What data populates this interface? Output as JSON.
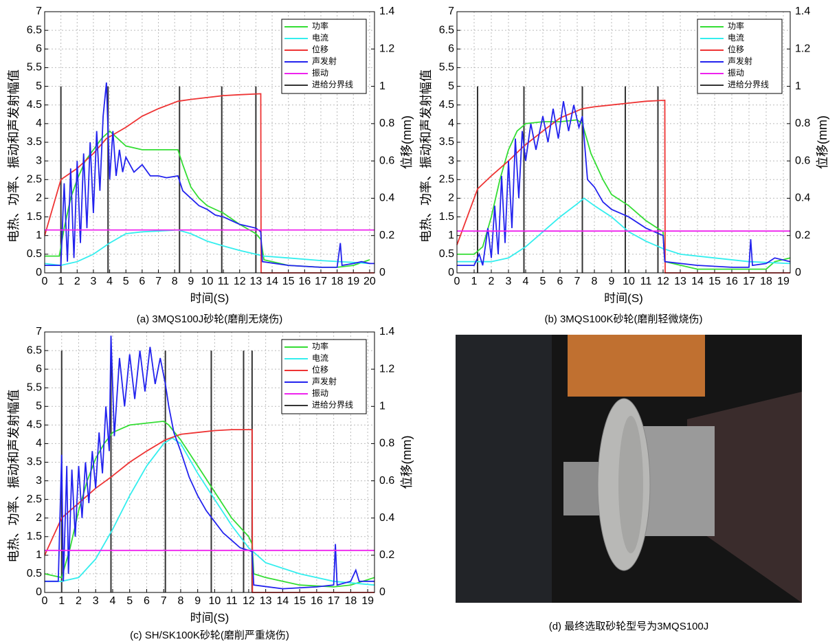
{
  "chart_data": [
    {
      "type": "line",
      "caption": "(a) 3MQS100J砂轮(磨削无烧伤)",
      "xlabel": "时间(S)",
      "ylabel": "电热、功率、振动和声发射幅值",
      "y2label": "位移(mm)",
      "xlim": [
        0,
        20.3
      ],
      "xticks": [
        0,
        1,
        2,
        3,
        4,
        5,
        6,
        7,
        8,
        9,
        10,
        11,
        12,
        13,
        14,
        15,
        16,
        17,
        18,
        19,
        20
      ],
      "ylim": [
        0,
        7
      ],
      "yticks": [
        0,
        0.5,
        1,
        1.5,
        2,
        2.5,
        3,
        3.5,
        4,
        4.5,
        5,
        5.5,
        6,
        6.5,
        7
      ],
      "y2lim": [
        0,
        1.4
      ],
      "y2ticks": [
        0,
        0.2,
        0.4,
        0.6,
        0.8,
        1,
        1.2,
        1.4
      ],
      "grid": true,
      "legend": "upper right",
      "series": [
        {
          "name": "功率",
          "color": "#33dd33",
          "x": [
            0,
            0.9,
            1.2,
            1.6,
            2,
            2.5,
            3,
            3.5,
            4,
            4.5,
            5,
            6,
            7,
            8.2,
            8.5,
            9,
            9.5,
            10,
            11,
            12,
            13,
            13.3,
            13.5,
            15,
            17,
            18,
            19,
            20
          ],
          "values": [
            0.45,
            0.45,
            1.2,
            2,
            2.5,
            3,
            3.3,
            3.6,
            3.8,
            3.6,
            3.4,
            3.3,
            3.3,
            3.3,
            2.9,
            2.3,
            2,
            1.8,
            1.6,
            1.3,
            1.05,
            0.9,
            0.35,
            0.2,
            0.15,
            0.15,
            0.2,
            0.35
          ]
        },
        {
          "name": "电流",
          "color": "#33eeee",
          "x": [
            0,
            1,
            2,
            3,
            4,
            5,
            6,
            7,
            8.2,
            9,
            10,
            11,
            12,
            13,
            13.5,
            15,
            17,
            19,
            20
          ],
          "values": [
            0.25,
            0.2,
            0.3,
            0.5,
            0.8,
            1.05,
            1.1,
            1.12,
            1.15,
            1.05,
            0.85,
            0.72,
            0.6,
            0.5,
            0.45,
            0.4,
            0.33,
            0.28,
            0.25
          ]
        },
        {
          "name": "位移",
          "color": "#ee3333",
          "axis": "y2",
          "x": [
            0,
            1,
            2,
            3,
            3.8,
            5,
            6,
            7,
            8.2,
            9,
            10,
            11,
            12,
            13.3,
            13.32,
            20.3
          ],
          "values": [
            0.2,
            0.5,
            0.56,
            0.64,
            0.72,
            0.78,
            0.84,
            0.88,
            0.92,
            0.93,
            0.94,
            0.95,
            0.955,
            0.96,
            0,
            0
          ]
        },
        {
          "name": "声发射",
          "color": "#2222ee",
          "x": [
            0,
            1,
            1.2,
            1.4,
            1.6,
            1.8,
            2,
            2.2,
            2.4,
            2.6,
            2.8,
            3,
            3.2,
            3.4,
            3.6,
            3.8,
            4,
            4.2,
            4.4,
            4.6,
            4.8,
            5,
            5.5,
            6,
            6.5,
            7,
            7.5,
            8.2,
            8.5,
            9,
            9.5,
            10,
            10.5,
            11,
            11.5,
            12,
            13,
            13.3,
            13.4,
            15,
            17,
            18,
            18.2,
            18.3,
            19,
            19.5,
            20,
            20.3
          ],
          "values": [
            0.2,
            0.2,
            2.4,
            0.3,
            2.8,
            0.4,
            3,
            0.8,
            3.2,
            1.2,
            3.5,
            1.6,
            3.8,
            2.2,
            4.2,
            5.1,
            2.5,
            3.8,
            2.6,
            3.3,
            2.7,
            3.1,
            2.7,
            2.9,
            2.6,
            2.6,
            2.55,
            2.6,
            2.2,
            2,
            1.8,
            1.7,
            1.55,
            1.5,
            1.4,
            1.3,
            1.2,
            1.1,
            0.3,
            0.2,
            0.15,
            0.15,
            0.8,
            0.2,
            0.25,
            0.3,
            0.25,
            0.25
          ]
        },
        {
          "name": "振动",
          "color": "#ee22ee",
          "x": [
            0,
            20.3
          ],
          "values": [
            1.15,
            1.15
          ]
        }
      ],
      "vlines": {
        "name": "进给分界线",
        "color": "#333333",
        "x": [
          1,
          3.9,
          8.3,
          10.9,
          13
        ],
        "top": 5
      }
    },
    {
      "type": "line",
      "caption": "(b) 3MQS100K砂轮(磨削轻微烧伤)",
      "xlabel": "时间(S)",
      "ylabel": "电热、功率、振动和声发射幅值",
      "y2label": "位移(mm)",
      "xlim": [
        0,
        19.4
      ],
      "xticks": [
        0,
        1,
        2,
        3,
        4,
        5,
        6,
        7,
        8,
        9,
        10,
        11,
        12,
        13,
        14,
        15,
        16,
        17,
        18,
        19
      ],
      "ylim": [
        0,
        7
      ],
      "yticks": [
        0,
        0.5,
        1,
        1.5,
        2,
        2.5,
        3,
        3.5,
        4,
        4.5,
        5,
        5.5,
        6,
        6.5,
        7
      ],
      "y2lim": [
        0,
        1.4
      ],
      "y2ticks": [
        0,
        0.2,
        0.4,
        0.6,
        0.8,
        1,
        1.2,
        1.4
      ],
      "grid": true,
      "legend": "upper right",
      "series": [
        {
          "name": "功率",
          "color": "#33dd33",
          "x": [
            0,
            1,
            1.5,
            2,
            2.5,
            3,
            3.5,
            4,
            5,
            6,
            7,
            7.3,
            7.8,
            8.5,
            9,
            10,
            11,
            12,
            12.1,
            14,
            16,
            18,
            18.5,
            19.4
          ],
          "values": [
            0.5,
            0.5,
            0.7,
            1.5,
            2.5,
            3.3,
            3.8,
            4,
            4.05,
            4.05,
            4.1,
            4,
            3.2,
            2.5,
            2.1,
            1.8,
            1.4,
            1.1,
            0.3,
            0.1,
            0.1,
            0.1,
            0.3,
            0.4
          ]
        },
        {
          "name": "电流",
          "color": "#33eeee",
          "x": [
            0,
            2,
            3,
            4,
            5,
            6,
            7,
            7.4,
            8,
            9,
            10,
            11,
            12,
            13,
            15,
            17,
            19.4
          ],
          "values": [
            0.3,
            0.3,
            0.4,
            0.7,
            1.1,
            1.5,
            1.85,
            2,
            1.8,
            1.5,
            1.1,
            0.85,
            0.65,
            0.5,
            0.4,
            0.3,
            0.25
          ]
        },
        {
          "name": "位移",
          "color": "#ee3333",
          "axis": "y2",
          "x": [
            0,
            1.2,
            2,
            3,
            3.9,
            5,
            6,
            7.3,
            8,
            9,
            10,
            11,
            12.1,
            12.12,
            19.4
          ],
          "values": [
            0.15,
            0.45,
            0.52,
            0.6,
            0.68,
            0.76,
            0.83,
            0.88,
            0.89,
            0.9,
            0.91,
            0.92,
            0.925,
            0,
            0
          ]
        },
        {
          "name": "声发射",
          "color": "#2222ee",
          "x": [
            0,
            1,
            1.3,
            1.5,
            1.8,
            2,
            2.2,
            2.4,
            2.6,
            2.8,
            3,
            3.2,
            3.4,
            3.6,
            3.8,
            4,
            4.3,
            4.6,
            5,
            5.3,
            5.6,
            5.9,
            6.2,
            6.5,
            6.8,
            7.1,
            7.3,
            7.6,
            8,
            8.5,
            9,
            9.5,
            10,
            11,
            12,
            12.1,
            14,
            16,
            17,
            17.1,
            17.2,
            18,
            18.5,
            19.4
          ],
          "values": [
            0.2,
            0.2,
            0.5,
            0.2,
            1.2,
            0.4,
            1.8,
            0.5,
            2.6,
            0.8,
            3,
            1.2,
            3.6,
            2,
            3.8,
            3,
            4,
            3.3,
            4.2,
            3.5,
            4.4,
            3.6,
            4.6,
            3.8,
            4.5,
            3.9,
            4.2,
            2.5,
            2.3,
            1.9,
            1.7,
            1.6,
            1.5,
            1.2,
            1,
            0.3,
            0.2,
            0.15,
            0.15,
            0.9,
            0.2,
            0.25,
            0.4,
            0.3
          ]
        },
        {
          "name": "振动",
          "color": "#ee22ee",
          "x": [
            0,
            19.4
          ],
          "values": [
            1.12,
            1.12
          ]
        }
      ],
      "vlines": {
        "name": "进给分界线",
        "color": "#333333",
        "x": [
          1.2,
          3.9,
          7.3,
          9.8,
          11.7
        ],
        "top": 5
      }
    },
    {
      "type": "line",
      "caption": "(c) SH/SK100K砂轮(磨削严重烧伤)",
      "xlabel": "时间(S)",
      "ylabel": "电热、功率、振动和声发射幅值",
      "y2label": "位移(mm)",
      "xlim": [
        0,
        19.4
      ],
      "xticks": [
        0,
        1,
        2,
        3,
        4,
        5,
        6,
        7,
        8,
        9,
        10,
        11,
        12,
        13,
        14,
        15,
        16,
        17,
        18,
        19
      ],
      "ylim": [
        0,
        7
      ],
      "yticks": [
        0,
        0.5,
        1,
        1.5,
        2,
        2.5,
        3,
        3.5,
        4,
        4.5,
        5,
        5.5,
        6,
        6.5,
        7
      ],
      "y2lim": [
        0,
        1.4
      ],
      "y2ticks": [
        0,
        0.2,
        0.4,
        0.6,
        0.8,
        1,
        1.2,
        1.4
      ],
      "grid": true,
      "legend": "upper right",
      "series": [
        {
          "name": "功率",
          "color": "#33dd33",
          "x": [
            0,
            1,
            1.5,
            2,
            2.5,
            3,
            3.5,
            4,
            5,
            6,
            7,
            7.3,
            8,
            9,
            10,
            11,
            12,
            12.2,
            12.3,
            13,
            15,
            17,
            18,
            19.4
          ],
          "values": [
            0.5,
            0.4,
            1.2,
            2.2,
            3,
            3.6,
            4,
            4.3,
            4.5,
            4.55,
            4.6,
            4.5,
            4.1,
            3.4,
            2.7,
            2,
            1.5,
            1.3,
            0.5,
            0.4,
            0.2,
            0.15,
            0.2,
            0.4
          ]
        },
        {
          "name": "电流",
          "color": "#33eeee",
          "x": [
            0,
            1,
            2,
            3,
            4,
            5,
            6,
            7,
            7.5,
            8,
            9,
            10,
            11,
            12,
            13,
            15,
            17,
            19.4
          ],
          "values": [
            0.3,
            0.3,
            0.4,
            0.9,
            1.7,
            2.6,
            3.4,
            4,
            4.15,
            4,
            3.2,
            2.5,
            1.8,
            1.2,
            0.8,
            0.5,
            0.3,
            0.2
          ]
        },
        {
          "name": "位移",
          "color": "#ee3333",
          "axis": "y2",
          "x": [
            0,
            1,
            2,
            3,
            3.9,
            5,
            6,
            7.1,
            8,
            9,
            10,
            11,
            12.2,
            12.22,
            19.4
          ],
          "values": [
            0.2,
            0.4,
            0.48,
            0.56,
            0.62,
            0.7,
            0.76,
            0.82,
            0.85,
            0.86,
            0.87,
            0.875,
            0.875,
            0,
            0
          ]
        },
        {
          "name": "声发射",
          "color": "#2222ee",
          "x": [
            0,
            0.8,
            1,
            1.1,
            1.3,
            1.4,
            1.6,
            1.8,
            2,
            2.2,
            2.4,
            2.6,
            2.8,
            3,
            3.2,
            3.4,
            3.6,
            3.8,
            3.9,
            4.1,
            4.4,
            4.7,
            5,
            5.3,
            5.6,
            5.9,
            6.2,
            6.5,
            6.8,
            7.1,
            7.3,
            7.6,
            8,
            8.5,
            9,
            9.5,
            10,
            10.5,
            11,
            11.5,
            12.2,
            12.3,
            14,
            16,
            17,
            17.1,
            17.2,
            18,
            18.3,
            18.5,
            19.4
          ],
          "values": [
            0.3,
            0.3,
            3.7,
            0.3,
            3.4,
            0.5,
            3.3,
            1.5,
            3.4,
            2,
            3.5,
            2.4,
            3.8,
            2.8,
            4.3,
            3.2,
            5,
            3.8,
            6.9,
            4.2,
            6.3,
            5,
            6.4,
            5.2,
            6.5,
            5.4,
            6.6,
            5.6,
            6.3,
            5.6,
            5,
            4.3,
            3.8,
            3.1,
            2.6,
            2.2,
            1.9,
            1.6,
            1.4,
            1.2,
            1.1,
            0.2,
            0.1,
            0.15,
            0.2,
            1.3,
            0.2,
            0.3,
            0.6,
            0.3,
            0.3
          ]
        },
        {
          "name": "振动",
          "color": "#ee22ee",
          "x": [
            0,
            19.4
          ],
          "values": [
            1.13,
            1.13
          ]
        }
      ],
      "vlines": {
        "name": "进给分界线",
        "color": "#333333",
        "x": [
          1,
          3.9,
          7.1,
          9.8,
          11.7,
          12.2
        ],
        "top": 6.5
      }
    }
  ],
  "photo": {
    "caption": "(d) 最终选取砂轮型号为3MQS100J"
  }
}
